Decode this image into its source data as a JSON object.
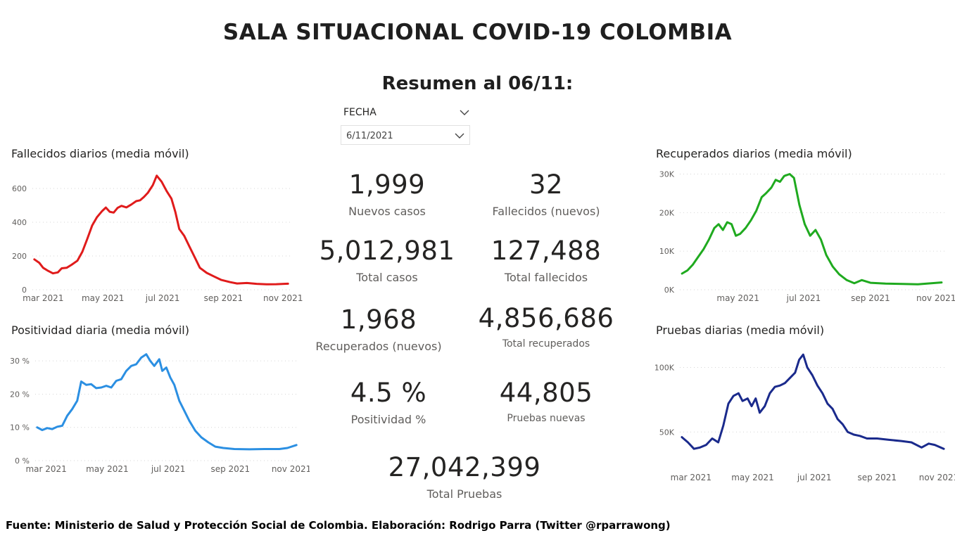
{
  "header": {
    "title": "SALA SITUACIONAL COVID-19 COLOMBIA",
    "subtitle": "Resumen al 06/11:"
  },
  "filter": {
    "label": "FECHA",
    "value": "6/11/2021",
    "icon": "chevron-down-icon"
  },
  "kpis": {
    "nuevos_casos": {
      "value": "1,999",
      "label": "Nuevos casos"
    },
    "fallecidos_nuevos": {
      "value": "32",
      "label": "Fallecidos (nuevos)"
    },
    "total_casos": {
      "value": "5,012,981",
      "label": "Total casos"
    },
    "total_fallecidos": {
      "value": "127,488",
      "label": "Total fallecidos"
    },
    "recuperados_nuevos": {
      "value": "1,968",
      "label": "Recuperados (nuevos)"
    },
    "total_recuperados": {
      "value": "4,856,686",
      "label": "Total recuperados"
    },
    "positividad": {
      "value": "4.5 %",
      "label": "Positividad %"
    },
    "pruebas_nuevas": {
      "value": "44,805",
      "label": "Pruebas nuevas"
    },
    "total_pruebas": {
      "value": "27,042,399",
      "label": "Total Pruebas"
    }
  },
  "footer": "Fuente: Ministerio de Salud y Protección Social de Colombia. Elaboración: Rodrigo Parra (Twitter @rparrawong)",
  "chart_data": [
    {
      "id": "fallecidos",
      "type": "line",
      "title": "Fallecidos diarios (media móvil)",
      "color": "#e01b1b",
      "grid": true,
      "xlim": [
        "2021-02-18",
        "2021-11-08"
      ],
      "ylim": [
        0,
        700
      ],
      "yticks": [
        {
          "v": 0,
          "label": "0"
        },
        {
          "v": 200,
          "label": "200"
        },
        {
          "v": 400,
          "label": "400"
        },
        {
          "v": 600,
          "label": "600"
        }
      ],
      "xticks": [
        {
          "date": "2021-03-01",
          "label": "mar 2021"
        },
        {
          "date": "2021-05-01",
          "label": "may 2021"
        },
        {
          "date": "2021-07-01",
          "label": "jul 2021"
        },
        {
          "date": "2021-09-01",
          "label": "sep 2021"
        },
        {
          "date": "2021-11-01",
          "label": "nov 2021"
        }
      ],
      "points": [
        [
          "2021-02-20",
          180
        ],
        [
          "2021-02-25",
          160
        ],
        [
          "2021-03-01",
          130
        ],
        [
          "2021-03-06",
          112
        ],
        [
          "2021-03-11",
          97
        ],
        [
          "2021-03-16",
          103
        ],
        [
          "2021-03-20",
          127
        ],
        [
          "2021-03-25",
          130
        ],
        [
          "2021-03-30",
          148
        ],
        [
          "2021-04-05",
          172
        ],
        [
          "2021-04-10",
          225
        ],
        [
          "2021-04-15",
          300
        ],
        [
          "2021-04-20",
          380
        ],
        [
          "2021-04-25",
          430
        ],
        [
          "2021-04-30",
          465
        ],
        [
          "2021-05-04",
          487
        ],
        [
          "2021-05-08",
          462
        ],
        [
          "2021-05-12",
          457
        ],
        [
          "2021-05-16",
          485
        ],
        [
          "2021-05-20",
          497
        ],
        [
          "2021-05-25",
          488
        ],
        [
          "2021-05-30",
          505
        ],
        [
          "2021-06-04",
          525
        ],
        [
          "2021-06-08",
          530
        ],
        [
          "2021-06-12",
          550
        ],
        [
          "2021-06-16",
          575
        ],
        [
          "2021-06-21",
          620
        ],
        [
          "2021-06-25",
          676
        ],
        [
          "2021-06-30",
          640
        ],
        [
          "2021-07-05",
          585
        ],
        [
          "2021-07-10",
          540
        ],
        [
          "2021-07-14",
          460
        ],
        [
          "2021-07-18",
          360
        ],
        [
          "2021-07-23",
          320
        ],
        [
          "2021-07-28",
          260
        ],
        [
          "2021-08-03",
          190
        ],
        [
          "2021-08-08",
          130
        ],
        [
          "2021-08-15",
          100
        ],
        [
          "2021-08-22",
          80
        ],
        [
          "2021-08-30",
          58
        ],
        [
          "2021-09-08",
          45
        ],
        [
          "2021-09-15",
          37
        ],
        [
          "2021-09-25",
          40
        ],
        [
          "2021-10-05",
          35
        ],
        [
          "2021-10-15",
          32
        ],
        [
          "2021-10-25",
          33
        ],
        [
          "2021-11-06",
          36
        ]
      ]
    },
    {
      "id": "positividad",
      "type": "line",
      "title": "Positividad diaria (media móvil)",
      "color": "#2b8fe2",
      "grid": true,
      "xlim": [
        "2021-02-18",
        "2021-11-08"
      ],
      "ylim": [
        0,
        33
      ],
      "yticks": [
        {
          "v": 0,
          "label": "0 %"
        },
        {
          "v": 10,
          "label": "10 %"
        },
        {
          "v": 20,
          "label": "20 %"
        },
        {
          "v": 30,
          "label": "30 %"
        }
      ],
      "xticks": [
        {
          "date": "2021-03-01",
          "label": "mar 2021"
        },
        {
          "date": "2021-05-01",
          "label": "may 2021"
        },
        {
          "date": "2021-07-01",
          "label": "jul 2021"
        },
        {
          "date": "2021-09-01",
          "label": "sep 2021"
        },
        {
          "date": "2021-11-01",
          "label": "nov 2021"
        }
      ],
      "points": [
        [
          "2021-02-20",
          10
        ],
        [
          "2021-02-25",
          9.2
        ],
        [
          "2021-03-02",
          9.8
        ],
        [
          "2021-03-07",
          9.5
        ],
        [
          "2021-03-12",
          10.2
        ],
        [
          "2021-03-17",
          10.5
        ],
        [
          "2021-03-22",
          13.5
        ],
        [
          "2021-03-27",
          15.5
        ],
        [
          "2021-04-01",
          18
        ],
        [
          "2021-04-05",
          23.8
        ],
        [
          "2021-04-10",
          22.8
        ],
        [
          "2021-04-15",
          23
        ],
        [
          "2021-04-20",
          21.8
        ],
        [
          "2021-04-25",
          22
        ],
        [
          "2021-04-30",
          22.5
        ],
        [
          "2021-05-05",
          22
        ],
        [
          "2021-05-10",
          24
        ],
        [
          "2021-05-15",
          24.5
        ],
        [
          "2021-05-20",
          27
        ],
        [
          "2021-05-25",
          28.5
        ],
        [
          "2021-05-30",
          29
        ],
        [
          "2021-06-04",
          31
        ],
        [
          "2021-06-09",
          32
        ],
        [
          "2021-06-13",
          30
        ],
        [
          "2021-06-17",
          28.5
        ],
        [
          "2021-06-22",
          30.5
        ],
        [
          "2021-06-25",
          27
        ],
        [
          "2021-06-29",
          28
        ],
        [
          "2021-07-03",
          25
        ],
        [
          "2021-07-07",
          22.8
        ],
        [
          "2021-07-12",
          18
        ],
        [
          "2021-07-17",
          15
        ],
        [
          "2021-07-22",
          12
        ],
        [
          "2021-07-28",
          9
        ],
        [
          "2021-08-03",
          7
        ],
        [
          "2021-08-10",
          5.5
        ],
        [
          "2021-08-17",
          4.2
        ],
        [
          "2021-08-25",
          3.8
        ],
        [
          "2021-09-05",
          3.5
        ],
        [
          "2021-09-20",
          3.4
        ],
        [
          "2021-10-05",
          3.5
        ],
        [
          "2021-10-20",
          3.5
        ],
        [
          "2021-10-28",
          3.8
        ],
        [
          "2021-11-06",
          4.7
        ]
      ]
    },
    {
      "id": "recuperados",
      "type": "line",
      "title": "Recuperados diarios (media móvil)",
      "color": "#1faa1f",
      "grid": true,
      "xlim": [
        "2021-03-08",
        "2021-11-10"
      ],
      "ylim": [
        0,
        31000
      ],
      "yticks": [
        {
          "v": 0,
          "label": "0K"
        },
        {
          "v": 10000,
          "label": "10K"
        },
        {
          "v": 20000,
          "label": "20K"
        },
        {
          "v": 30000,
          "label": "30K"
        }
      ],
      "xticks": [
        {
          "date": "2021-05-01",
          "label": "may 2021"
        },
        {
          "date": "2021-07-01",
          "label": "jul 2021"
        },
        {
          "date": "2021-09-01",
          "label": "sep 2021"
        },
        {
          "date": "2021-11-01",
          "label": "nov 2021"
        }
      ],
      "points": [
        [
          "2021-03-10",
          4200
        ],
        [
          "2021-03-15",
          5000
        ],
        [
          "2021-03-20",
          6500
        ],
        [
          "2021-03-25",
          8500
        ],
        [
          "2021-03-30",
          10500
        ],
        [
          "2021-04-04",
          13000
        ],
        [
          "2021-04-09",
          16000
        ],
        [
          "2021-04-13",
          17000
        ],
        [
          "2021-04-17",
          15500
        ],
        [
          "2021-04-21",
          17500
        ],
        [
          "2021-04-25",
          17000
        ],
        [
          "2021-04-29",
          14000
        ],
        [
          "2021-05-03",
          14500
        ],
        [
          "2021-05-08",
          16000
        ],
        [
          "2021-05-13",
          18000
        ],
        [
          "2021-05-18",
          20500
        ],
        [
          "2021-05-23",
          24000
        ],
        [
          "2021-05-27",
          25000
        ],
        [
          "2021-06-01",
          26500
        ],
        [
          "2021-06-05",
          28500
        ],
        [
          "2021-06-09",
          28000
        ],
        [
          "2021-06-13",
          29500
        ],
        [
          "2021-06-18",
          30000
        ],
        [
          "2021-06-22",
          29000
        ],
        [
          "2021-06-27",
          22000
        ],
        [
          "2021-07-02",
          17000
        ],
        [
          "2021-07-07",
          14000
        ],
        [
          "2021-07-12",
          15500
        ],
        [
          "2021-07-17",
          13000
        ],
        [
          "2021-07-22",
          9000
        ],
        [
          "2021-07-28",
          6000
        ],
        [
          "2021-08-03",
          4000
        ],
        [
          "2021-08-10",
          2500
        ],
        [
          "2021-08-17",
          1700
        ],
        [
          "2021-08-24",
          2500
        ],
        [
          "2021-09-01",
          1800
        ],
        [
          "2021-09-15",
          1600
        ],
        [
          "2021-10-01",
          1500
        ],
        [
          "2021-10-15",
          1400
        ],
        [
          "2021-11-06",
          1900
        ]
      ]
    },
    {
      "id": "pruebas",
      "type": "line",
      "title": "Pruebas diarias (media móvil)",
      "color": "#1a2a8c",
      "grid": true,
      "xlim": [
        "2021-02-18",
        "2021-11-08"
      ],
      "ylim": [
        30000,
        115000
      ],
      "yticks": [
        {
          "v": 50000,
          "label": "50K"
        },
        {
          "v": 100000,
          "label": "100K"
        }
      ],
      "xticks": [
        {
          "date": "2021-03-01",
          "label": "mar 2021"
        },
        {
          "date": "2021-05-01",
          "label": "may 2021"
        },
        {
          "date": "2021-07-01",
          "label": "jul 2021"
        },
        {
          "date": "2021-09-01",
          "label": "sep 2021"
        },
        {
          "date": "2021-11-01",
          "label": "nov 2021"
        }
      ],
      "points": [
        [
          "2021-02-20",
          46000
        ],
        [
          "2021-02-26",
          42000
        ],
        [
          "2021-03-04",
          37000
        ],
        [
          "2021-03-10",
          38000
        ],
        [
          "2021-03-16",
          40000
        ],
        [
          "2021-03-22",
          45000
        ],
        [
          "2021-03-28",
          42000
        ],
        [
          "2021-04-02",
          55000
        ],
        [
          "2021-04-07",
          72000
        ],
        [
          "2021-04-12",
          78000
        ],
        [
          "2021-04-17",
          80000
        ],
        [
          "2021-04-21",
          74000
        ],
        [
          "2021-04-26",
          76000
        ],
        [
          "2021-04-30",
          70000
        ],
        [
          "2021-05-04",
          76000
        ],
        [
          "2021-05-08",
          65000
        ],
        [
          "2021-05-13",
          70000
        ],
        [
          "2021-05-18",
          80000
        ],
        [
          "2021-05-23",
          85000
        ],
        [
          "2021-05-28",
          86000
        ],
        [
          "2021-06-02",
          88000
        ],
        [
          "2021-06-07",
          92000
        ],
        [
          "2021-06-12",
          96000
        ],
        [
          "2021-06-16",
          106000
        ],
        [
          "2021-06-20",
          110000
        ],
        [
          "2021-06-24",
          100000
        ],
        [
          "2021-06-29",
          94000
        ],
        [
          "2021-07-04",
          86000
        ],
        [
          "2021-07-09",
          80000
        ],
        [
          "2021-07-14",
          72000
        ],
        [
          "2021-07-19",
          68000
        ],
        [
          "2021-07-24",
          60000
        ],
        [
          "2021-07-29",
          56000
        ],
        [
          "2021-08-03",
          50000
        ],
        [
          "2021-08-09",
          48000
        ],
        [
          "2021-08-15",
          47000
        ],
        [
          "2021-08-22",
          45000
        ],
        [
          "2021-09-01",
          45000
        ],
        [
          "2021-09-12",
          44000
        ],
        [
          "2021-09-25",
          43000
        ],
        [
          "2021-10-05",
          42000
        ],
        [
          "2021-10-15",
          38000
        ],
        [
          "2021-10-22",
          41000
        ],
        [
          "2021-10-28",
          40000
        ],
        [
          "2021-11-06",
          37000
        ]
      ]
    }
  ]
}
